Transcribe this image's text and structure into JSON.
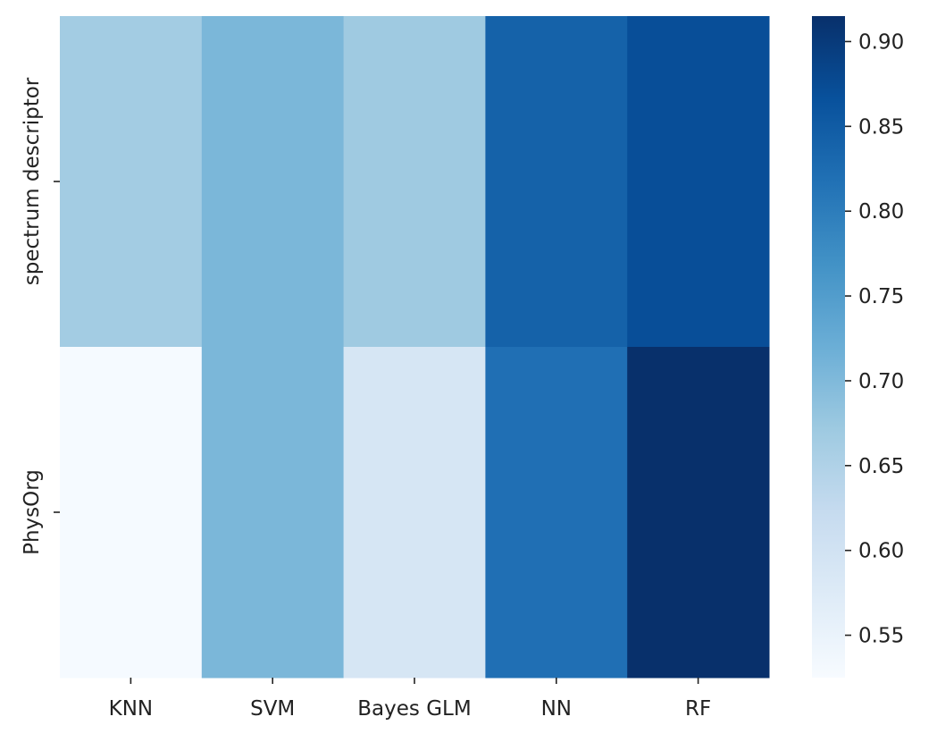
{
  "chart_data": {
    "type": "heatmap",
    "rows": [
      "spectrum descriptor",
      "PhysOrg"
    ],
    "columns": [
      "KNN",
      "SVM",
      "Bayes GLM",
      "NN",
      "RF"
    ],
    "values": [
      [
        0.665,
        0.705,
        0.67,
        0.84,
        0.87
      ],
      [
        0.528,
        0.705,
        0.59,
        0.82,
        0.915
      ]
    ],
    "colorbar": {
      "min": 0.525,
      "max": 0.915,
      "ticks": [
        0.55,
        0.6,
        0.65,
        0.7,
        0.75,
        0.8,
        0.85,
        0.9
      ],
      "tick_labels": [
        "0.55",
        "0.60",
        "0.65",
        "0.70",
        "0.75",
        "0.80",
        "0.85",
        "0.90"
      ],
      "colormap": "Blues",
      "colormap_stops": [
        "#f7fbff",
        "#deebf7",
        "#c6dbef",
        "#9ecae1",
        "#6baed6",
        "#4292c6",
        "#2171b5",
        "#08519c",
        "#08306b"
      ]
    },
    "title": "",
    "xlabel": "",
    "ylabel": "",
    "grid": false
  }
}
